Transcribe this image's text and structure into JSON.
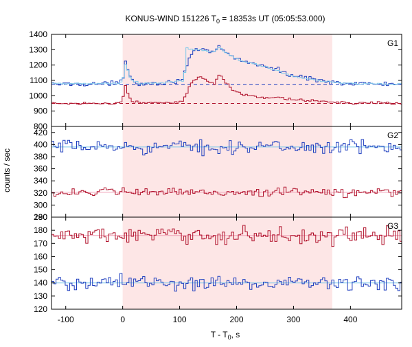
{
  "chart_data": {
    "type": "line",
    "title": "KONUS-WIND 151226 T₀ = 18353s UT (05:05:53.000)",
    "title_parts": {
      "prefix": "KONUS-WIND 151226 T",
      "subscript": "0",
      "suffix": " = 18353s UT (05:05:53.000)"
    },
    "xlabel": "T - T₀, s",
    "xlabel_parts": {
      "prefix": "T - T",
      "subscript": "0",
      "suffix": ", s"
    },
    "ylabel": "counts / sec",
    "xlim": [
      -125,
      490
    ],
    "xticks": [
      -100,
      0,
      100,
      200,
      300,
      400
    ],
    "shaded_interval": {
      "x": [
        0,
        368
      ],
      "color": "#fde6e6"
    },
    "colors": {
      "blue": "#1f3fbf",
      "lightblue": "#7ec8ea",
      "red": "#b0102a",
      "pink": "#f2a3b8"
    },
    "panels": [
      {
        "label": "G1",
        "ylim": [
          800,
          1400
        ],
        "yticks": [
          800,
          900,
          1000,
          1100,
          1200,
          1300,
          1400
        ],
        "background_levels": [
          {
            "value": 1075,
            "color": "#1f3fbf",
            "style": "dashed"
          },
          {
            "value": 950,
            "color": "#b0102a",
            "style": "dashed"
          }
        ],
        "series": [
          {
            "color": "#1f3fbf",
            "step": 4,
            "breakpoints": [
              [
                -125,
                1075
              ],
              [
                -5,
                1080
              ],
              [
                0,
                1110
              ],
              [
                3,
                1160
              ],
              [
                5,
                1225
              ],
              [
                8,
                1200
              ],
              [
                12,
                1140
              ],
              [
                18,
                1095
              ],
              [
                30,
                1080
              ],
              [
                80,
                1085
              ],
              [
                105,
                1110
              ],
              [
                112,
                1190
              ],
              [
                118,
                1250
              ],
              [
                125,
                1280
              ],
              [
                135,
                1300
              ],
              [
                150,
                1290
              ],
              [
                160,
                1280
              ],
              [
                170,
                1320
              ],
              [
                178,
                1290
              ],
              [
                190,
                1260
              ],
              [
                210,
                1230
              ],
              [
                240,
                1200
              ],
              [
                270,
                1170
              ],
              [
                300,
                1130
              ],
              [
                340,
                1105
              ],
              [
                368,
                1090
              ],
              [
                400,
                1080
              ],
              [
                490,
                1075
              ]
            ],
            "noise": 12
          },
          {
            "color": "#7ec8ea",
            "step": 4,
            "breakpoints": [
              [
                -125,
                1078
              ],
              [
                -5,
                1080
              ],
              [
                0,
                1100
              ],
              [
                3,
                1150
              ],
              [
                5,
                1200
              ],
              [
                8,
                1180
              ],
              [
                12,
                1130
              ],
              [
                18,
                1095
              ],
              [
                30,
                1080
              ],
              [
                80,
                1085
              ],
              [
                108,
                1100
              ],
              [
                112,
                1310
              ],
              [
                122,
                1300
              ],
              [
                135,
                1300
              ],
              [
                150,
                1290
              ],
              [
                160,
                1280
              ],
              [
                170,
                1320
              ],
              [
                178,
                1290
              ],
              [
                190,
                1260
              ],
              [
                210,
                1225
              ],
              [
                240,
                1200
              ],
              [
                270,
                1165
              ],
              [
                300,
                1125
              ],
              [
                340,
                1100
              ],
              [
                368,
                1088
              ],
              [
                400,
                1080
              ],
              [
                490,
                1076
              ]
            ],
            "noise": 5
          },
          {
            "color": "#b0102a",
            "step": 4,
            "breakpoints": [
              [
                -125,
                950
              ],
              [
                -5,
                952
              ],
              [
                0,
                980
              ],
              [
                3,
                1040
              ],
              [
                5,
                1075
              ],
              [
                8,
                1030
              ],
              [
                12,
                985
              ],
              [
                18,
                960
              ],
              [
                30,
                955
              ],
              [
                80,
                955
              ],
              [
                105,
                965
              ],
              [
                112,
                1010
              ],
              [
                118,
                1060
              ],
              [
                125,
                1100
              ],
              [
                135,
                1120
              ],
              [
                150,
                1090
              ],
              [
                160,
                1070
              ],
              [
                170,
                1140
              ],
              [
                178,
                1100
              ],
              [
                190,
                1050
              ],
              [
                210,
                1010
              ],
              [
                240,
                990
              ],
              [
                270,
                985
              ],
              [
                300,
                975
              ],
              [
                340,
                965
              ],
              [
                368,
                960
              ],
              [
                400,
                955
              ],
              [
                490,
                950
              ]
            ],
            "noise": 7
          }
        ]
      },
      {
        "label": "G2",
        "ylim": [
          280,
          430
        ],
        "yticks": [
          280,
          300,
          320,
          340,
          360,
          380,
          400,
          420
        ],
        "background_levels": [
          {
            "value": 396,
            "color": "#7ec8ea",
            "style": "solid"
          },
          {
            "value": 321,
            "color": "#f2a3b8",
            "style": "solid"
          }
        ],
        "series": [
          {
            "color": "#1f3fbf",
            "step": 4,
            "breakpoints": [
              [
                -125,
                396
              ],
              [
                490,
                396
              ]
            ],
            "noise": 9
          },
          {
            "color": "#b0102a",
            "step": 4,
            "breakpoints": [
              [
                -125,
                321
              ],
              [
                490,
                321
              ]
            ],
            "noise": 6
          }
        ]
      },
      {
        "label": "G3",
        "ylim": [
          120,
          190
        ],
        "yticks": [
          120,
          130,
          140,
          150,
          160,
          170,
          180,
          190
        ],
        "background_levels": [
          {
            "value": 176,
            "color": "#f2a3b8",
            "style": "solid"
          },
          {
            "value": 140,
            "color": "#7ec8ea",
            "style": "solid"
          }
        ],
        "series": [
          {
            "color": "#b0102a",
            "step": 4,
            "breakpoints": [
              [
                -125,
                176
              ],
              [
                490,
                176
              ]
            ],
            "noise": 5
          },
          {
            "color": "#1f3fbf",
            "step": 4,
            "breakpoints": [
              [
                -125,
                140
              ],
              [
                490,
                140
              ]
            ],
            "noise": 5
          }
        ]
      }
    ]
  }
}
